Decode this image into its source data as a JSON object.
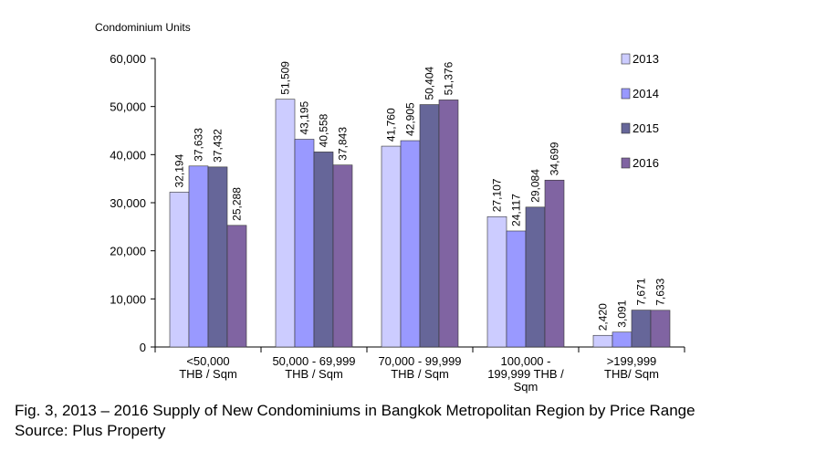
{
  "chart_data": {
    "type": "bar",
    "ylabel": "Condominium Units",
    "xlabel": "",
    "ylim": [
      0,
      60000
    ],
    "yticks": [
      0,
      10000,
      20000,
      30000,
      40000,
      50000,
      60000
    ],
    "ytick_labels": [
      "0",
      "10,000",
      "20,000",
      "30,000",
      "40,000",
      "50,000",
      "60,000"
    ],
    "categories": [
      [
        "<50,000",
        "THB / Sqm"
      ],
      [
        "50,000 - 69,999",
        "THB / Sqm"
      ],
      [
        "70,000 - 99,999",
        "THB / Sqm"
      ],
      [
        "100,000 -",
        "199,999 THB /",
        "Sqm"
      ],
      [
        ">199,999",
        "THB/ Sqm"
      ]
    ],
    "series": [
      {
        "name": "2013",
        "color": "#ccccff",
        "values": [
          32194,
          51509,
          41760,
          27107,
          2420
        ],
        "labels": [
          "32,194",
          "51,509",
          "41,760",
          "27,107",
          "2,420"
        ]
      },
      {
        "name": "2014",
        "color": "#9999ff",
        "values": [
          37633,
          43195,
          42905,
          24117,
          3091
        ],
        "labels": [
          "37,633",
          "43,195",
          "42,905",
          "24,117",
          "3,091"
        ]
      },
      {
        "name": "2015",
        "color": "#666699",
        "values": [
          37432,
          40558,
          50404,
          29084,
          7671
        ],
        "labels": [
          "37,432",
          "40,558",
          "50,404",
          "29,084",
          "7,671"
        ]
      },
      {
        "name": "2016",
        "color": "#8064a2",
        "values": [
          25288,
          37843,
          51376,
          34699,
          7633
        ],
        "labels": [
          "25,288",
          "37,843",
          "51,376",
          "34,699",
          "7,633"
        ]
      }
    ],
    "grid": false,
    "legend_position": "right"
  },
  "caption": {
    "line1": "Fig. 3, 2013 – 2016 Supply of New Condominiums in Bangkok Metropolitan Region by Price Range",
    "line2": "Source: Plus Property"
  }
}
